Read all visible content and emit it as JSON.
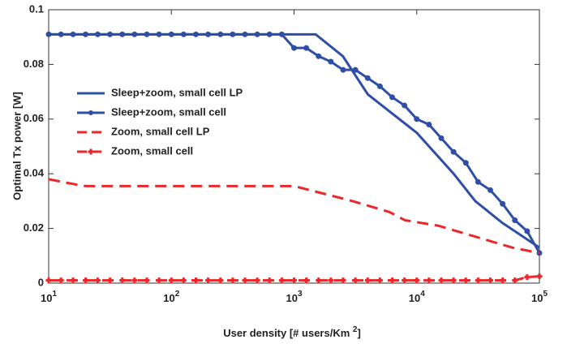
{
  "chart_data": {
    "type": "line",
    "ylabel": "Optimal Tx power [W]",
    "xlabel": {
      "text": "User density [# users/Km ",
      "sup": "2",
      "end": "]"
    },
    "xscale": "log",
    "xlim": [
      10,
      100000
    ],
    "ylim": [
      0,
      0.1
    ],
    "xticks": [
      {
        "value": 10,
        "label": "10",
        "sup": "1"
      },
      {
        "value": 100,
        "label": "10",
        "sup": "2"
      },
      {
        "value": 1000,
        "label": "10",
        "sup": "3"
      },
      {
        "value": 10000,
        "label": "10",
        "sup": "4"
      },
      {
        "value": 100000,
        "label": "10",
        "sup": "5"
      }
    ],
    "yticks": [
      0,
      0.02,
      0.04,
      0.06,
      0.08,
      0.1
    ],
    "legend": "upper left",
    "series": [
      {
        "name": "Sleep+zoom, small cell LP",
        "color": "#2f4fa6",
        "line_style": "solid",
        "marker": null,
        "x": [
          10,
          1500,
          2500,
          4000,
          10000,
          20000,
          30000,
          50000,
          100000
        ],
        "values": [
          0.091,
          0.091,
          0.083,
          0.069,
          0.055,
          0.04,
          0.03,
          0.022,
          0.013
        ]
      },
      {
        "name": "Sleep+zoom, small cell",
        "color": "#2f4fa6",
        "line_style": "solid",
        "marker": "circle",
        "x": [
          10,
          12.6,
          15.8,
          20,
          25.1,
          31.6,
          39.8,
          50.1,
          63.1,
          79.4,
          100,
          125.9,
          158.5,
          199.5,
          251.2,
          316.2,
          398.1,
          501.2,
          631,
          794.3,
          1000,
          1258.9,
          1584.9,
          1995.3,
          2511.9,
          3162.3,
          3981.1,
          5011.9,
          6309.6,
          7943.3,
          10000,
          12589,
          15849,
          19953,
          25119,
          31623,
          39811,
          50119,
          63096,
          79433,
          100000
        ],
        "values": [
          0.091,
          0.091,
          0.091,
          0.091,
          0.091,
          0.091,
          0.091,
          0.091,
          0.091,
          0.091,
          0.091,
          0.091,
          0.091,
          0.091,
          0.091,
          0.091,
          0.091,
          0.091,
          0.091,
          0.091,
          0.086,
          0.086,
          0.083,
          0.081,
          0.078,
          0.078,
          0.075,
          0.072,
          0.068,
          0.065,
          0.06,
          0.058,
          0.053,
          0.048,
          0.044,
          0.037,
          0.034,
          0.029,
          0.023,
          0.019,
          0.011
        ]
      },
      {
        "name": "Zoom, small cell LP",
        "color": "#e8282a",
        "line_style": "dashed",
        "marker": null,
        "x": [
          10,
          17,
          20,
          1000,
          3000,
          6000,
          8000,
          15000,
          30000,
          60000,
          100000
        ],
        "values": [
          0.038,
          0.036,
          0.0355,
          0.0355,
          0.03,
          0.026,
          0.023,
          0.021,
          0.017,
          0.013,
          0.011
        ]
      },
      {
        "name": "Zoom, small cell",
        "color": "#e8282a",
        "line_style": "dashed",
        "marker": "plus",
        "x": [
          10,
          12.6,
          15.8,
          20,
          25.1,
          31.6,
          39.8,
          50.1,
          63.1,
          79.4,
          100,
          125.9,
          158.5,
          199.5,
          251.2,
          316.2,
          398.1,
          501.2,
          631,
          794.3,
          1000,
          1258.9,
          1584.9,
          1995.3,
          2511.9,
          3162.3,
          3981.1,
          5011.9,
          6309.6,
          7943.3,
          10000,
          12589,
          15849,
          19953,
          25119,
          31623,
          39811,
          50119,
          63096,
          79433,
          100000
        ],
        "values": [
          0.001,
          0.001,
          0.001,
          0.001,
          0.001,
          0.001,
          0.001,
          0.001,
          0.001,
          0.001,
          0.001,
          0.001,
          0.001,
          0.001,
          0.001,
          0.001,
          0.001,
          0.001,
          0.001,
          0.001,
          0.001,
          0.001,
          0.001,
          0.001,
          0.001,
          0.001,
          0.001,
          0.001,
          0.001,
          0.001,
          0.001,
          0.001,
          0.001,
          0.001,
          0.001,
          0.001,
          0.001,
          0.001,
          0.001,
          0.0022,
          0.0025
        ]
      }
    ]
  }
}
